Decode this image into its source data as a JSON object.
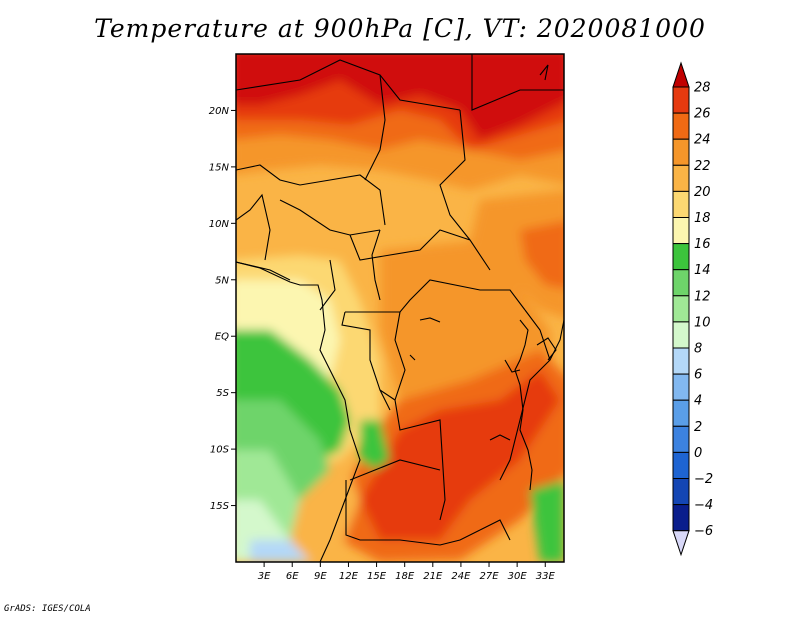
{
  "title": "Temperature at 900hPa [C], VT: 2020081000",
  "credit": "GrADS: IGES/COLA",
  "map": {
    "lon_range": [
      0,
      35
    ],
    "lat_range": [
      -20,
      25
    ],
    "lon_ticks": [
      {
        "value": 3,
        "label": "3E"
      },
      {
        "value": 6,
        "label": "6E"
      },
      {
        "value": 9,
        "label": "9E"
      },
      {
        "value": 12,
        "label": "12E"
      },
      {
        "value": 15,
        "label": "15E"
      },
      {
        "value": 18,
        "label": "18E"
      },
      {
        "value": 21,
        "label": "21E"
      },
      {
        "value": 24,
        "label": "24E"
      },
      {
        "value": 27,
        "label": "27E"
      },
      {
        "value": 30,
        "label": "30E"
      },
      {
        "value": 33,
        "label": "33E"
      }
    ],
    "lat_ticks": [
      {
        "value": 20,
        "label": "20N"
      },
      {
        "value": 15,
        "label": "15N"
      },
      {
        "value": 10,
        "label": "10N"
      },
      {
        "value": 5,
        "label": "5N"
      },
      {
        "value": 0,
        "label": "EQ"
      },
      {
        "value": -5,
        "label": "5S"
      },
      {
        "value": -10,
        "label": "10S"
      },
      {
        "value": -15,
        "label": "15S"
      }
    ]
  },
  "colorbar": {
    "levels": [
      {
        "label": "28",
        "color": "#d01010"
      },
      {
        "label": "26",
        "color": "#e63a10"
      },
      {
        "label": "24",
        "color": "#f06a14"
      },
      {
        "label": "22",
        "color": "#f5962a"
      },
      {
        "label": "20",
        "color": "#fab446"
      },
      {
        "label": "18",
        "color": "#fcd872"
      },
      {
        "label": "16",
        "color": "#fcf6b0"
      },
      {
        "label": "14",
        "color": "#3cc43c"
      },
      {
        "label": "12",
        "color": "#6ed46a"
      },
      {
        "label": "10",
        "color": "#a0e896"
      },
      {
        "label": "8",
        "color": "#d4f8cc"
      },
      {
        "label": "6",
        "color": "#b4d8f8"
      },
      {
        "label": "4",
        "color": "#82b8f0"
      },
      {
        "label": "2",
        "color": "#5a9ee8"
      },
      {
        "label": "0",
        "color": "#3c82e0"
      },
      {
        "label": "−2",
        "color": "#1e64d2"
      },
      {
        "label": "−4",
        "color": "#1446b4"
      },
      {
        "label": "−6",
        "color": "#0a1e8c"
      }
    ],
    "over_color": "#c00000",
    "under_color": "#d8d8f8"
  }
}
